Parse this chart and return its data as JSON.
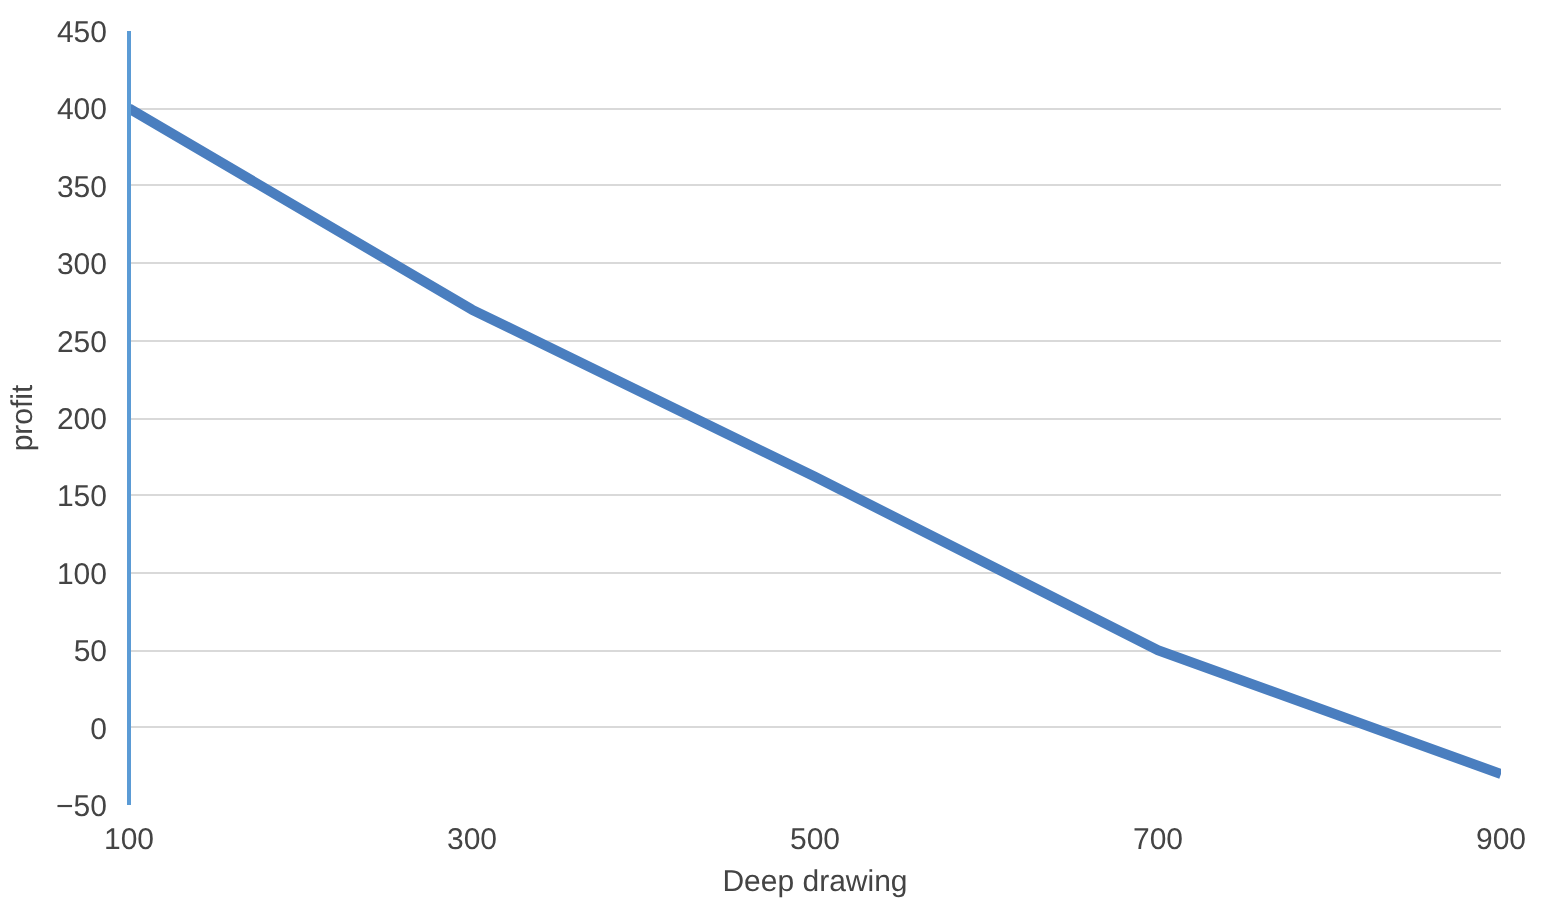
{
  "chart_data": {
    "type": "line",
    "xlabel": "Deep drawing",
    "ylabel": "profit",
    "x": [
      100,
      300,
      500,
      700,
      900
    ],
    "series": [
      {
        "color": "#4a7ebf",
        "values": [
          400,
          270,
          162,
          50,
          -30
        ]
      }
    ],
    "xlim": [
      100,
      900
    ],
    "xticks": [
      100,
      300,
      500,
      700,
      900
    ],
    "ylim": [
      -50,
      450
    ],
    "yticks": [
      -50,
      0,
      50,
      100,
      150,
      200,
      250,
      300,
      350,
      400,
      450
    ],
    "grid": "y",
    "marker": "none",
    "line_style": "solid"
  }
}
